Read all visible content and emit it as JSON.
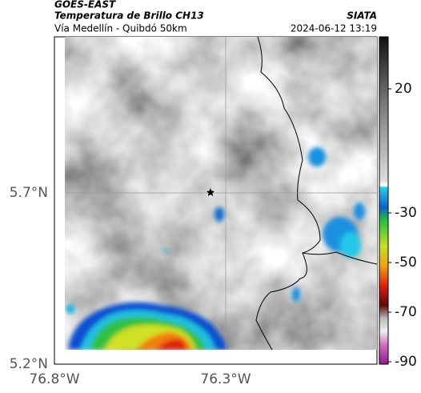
{
  "header": {
    "title": "GOES-EAST",
    "subtitle": "Temperatura de Brillo CH13",
    "route": "Vía Medellín - Quibdó 50km",
    "source": "SIATA",
    "datetime": "2024-06-12 13:19"
  },
  "map": {
    "lat_labels": [
      "5.7°N",
      "5.2°N"
    ],
    "lon_labels": [
      "76.8°W",
      "76.3°W"
    ]
  },
  "colorbar": {
    "ticks": [
      20,
      -30,
      -50,
      -70,
      -90
    ]
  }
}
